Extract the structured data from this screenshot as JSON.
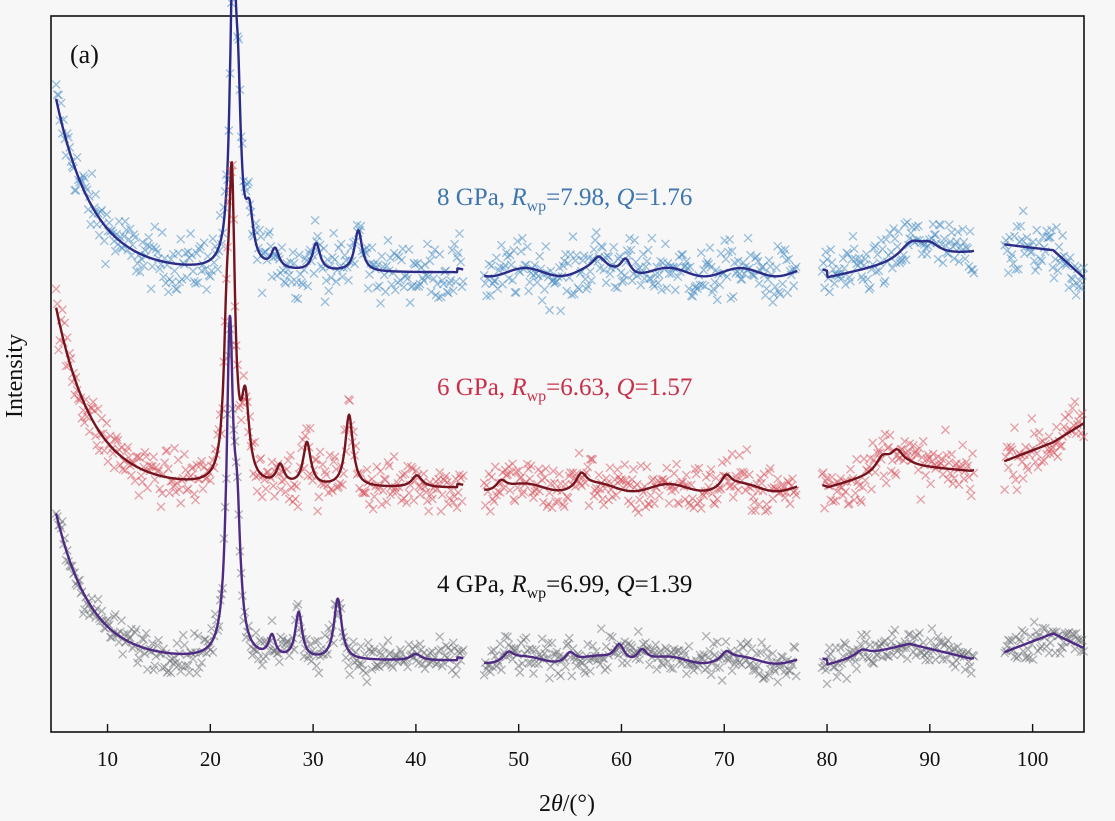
{
  "chart_data": {
    "type": "scatter",
    "panel_label": "(a)",
    "xlabel_parts": [
      "2",
      "θ",
      "/(°)"
    ],
    "ylabel": "Intensity",
    "xlim": [
      4.5,
      105
    ],
    "x_ticks": [
      10,
      20,
      30,
      40,
      50,
      60,
      70,
      80,
      90,
      100
    ],
    "grid": false,
    "y_ticks_shown": false,
    "measured_gaps": [
      [
        44.6,
        46.6
      ],
      [
        77.1,
        79.5
      ],
      [
        94.3,
        97.2
      ]
    ],
    "series": [
      {
        "pressure": "8 GPa",
        "rwp": "7.98",
        "q": "1.76",
        "annotation": {
          "p": "8 GPa, ",
          "r": "R",
          "sub": "wp",
          "v1": "=7.98, ",
          "q": "Q",
          "v2": "=1.76"
        },
        "observed_color": "#4a8ec3",
        "fit_color": "#2b2c88",
        "text_color": "#3e76ad",
        "background": {
          "start": 0.93,
          "floor": 0.3,
          "decay": 3.6,
          "points": [
            [
              80,
              0.28
            ],
            [
              88,
              0.34
            ],
            [
              94,
              0.37
            ],
            [
              97.2,
              0.4
            ],
            [
              102,
              0.38
            ],
            [
              105,
              0.28
            ]
          ]
        },
        "peaks": [
          [
            22.2,
            1.06,
            0.35
          ],
          [
            22.7,
            0.45,
            0.35
          ],
          [
            23.8,
            0.17,
            0.45
          ],
          [
            26.3,
            0.07,
            0.45
          ],
          [
            30.3,
            0.1,
            0.45
          ],
          [
            34.4,
            0.15,
            0.45
          ],
          [
            57.8,
            0.04,
            0.7
          ],
          [
            60.4,
            0.06,
            0.6
          ],
          [
            88.2,
            0.06,
            1.4
          ],
          [
            90.0,
            0.04,
            1.2
          ]
        ],
        "noise": 0.052,
        "y_base": 355,
        "scale": 275
      },
      {
        "pressure": "6 GPa",
        "rwp": "6.63",
        "q": "1.57",
        "annotation": {
          "p": "6 GPa, ",
          "r": "R",
          "sub": "wp",
          "v1": "=6.63, ",
          "q": "Q",
          "v2": "=1.57"
        },
        "observed_color": "#d7555e",
        "fit_color": "#75141e",
        "text_color": "#c73048",
        "background": {
          "start": 0.8,
          "floor": 0.05,
          "decay": 3.6,
          "points": [
            [
              80,
              0.05
            ],
            [
              88,
              0.14
            ],
            [
              94,
              0.12
            ],
            [
              97.2,
              0.16
            ],
            [
              102,
              0.24
            ],
            [
              105,
              0.32
            ]
          ]
        },
        "peaks": [
          [
            21.6,
            0.5,
            0.35
          ],
          [
            22.1,
            1.15,
            0.35
          ],
          [
            23.4,
            0.32,
            0.45
          ],
          [
            26.8,
            0.08,
            0.45
          ],
          [
            29.4,
            0.18,
            0.45
          ],
          [
            33.5,
            0.3,
            0.45
          ],
          [
            40.1,
            0.05,
            0.6
          ],
          [
            48.3,
            0.04,
            0.6
          ],
          [
            56.1,
            0.06,
            0.6
          ],
          [
            70.2,
            0.05,
            0.6
          ],
          [
            85.4,
            0.06,
            0.8
          ],
          [
            86.8,
            0.07,
            0.8
          ]
        ],
        "noise": 0.055,
        "y_base": 500,
        "scale": 240
      },
      {
        "pressure": "4 GPa",
        "rwp": "6.99",
        "q": "1.39",
        "annotation": {
          "p": "4 GPa, ",
          "r": "R",
          "sub": "wp",
          "v1": "=6.99, ",
          "q": "Q",
          "v2": "=1.39"
        },
        "observed_color": "#6f7378",
        "fit_color": "#4f2a83",
        "text_color": "#111111",
        "background": {
          "start": 0.72,
          "floor": 0.02,
          "decay": 3.4,
          "points": [
            [
              80,
              0.0
            ],
            [
              88,
              0.1
            ],
            [
              94,
              0.03
            ],
            [
              97.2,
              0.06
            ],
            [
              102,
              0.15
            ],
            [
              105,
              0.08
            ]
          ]
        },
        "peaks": [
          [
            21.9,
            1.5,
            0.38
          ],
          [
            22.6,
            0.55,
            0.4
          ],
          [
            26.0,
            0.1,
            0.4
          ],
          [
            28.6,
            0.22,
            0.4
          ],
          [
            32.4,
            0.29,
            0.45
          ],
          [
            40.0,
            0.03,
            0.6
          ],
          [
            49.0,
            0.04,
            0.6
          ],
          [
            55.0,
            0.05,
            0.6
          ],
          [
            59.8,
            0.08,
            0.6
          ],
          [
            62.0,
            0.06,
            0.6
          ],
          [
            70.2,
            0.04,
            0.6
          ],
          [
            83.4,
            0.03,
            0.8
          ]
        ],
        "noise": 0.045,
        "y_base": 665,
        "scale": 210
      }
    ]
  }
}
